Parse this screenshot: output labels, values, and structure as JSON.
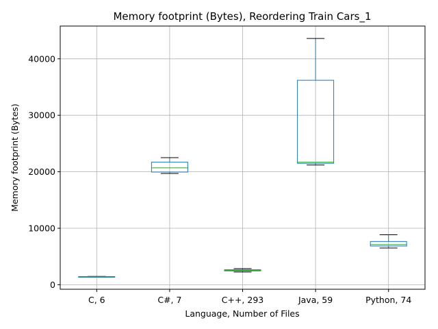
{
  "chart_data": {
    "type": "box",
    "title": "Memory footprint (Bytes), Reordering Train Cars_1",
    "xlabel": "Language, Number of Files",
    "ylabel": "Memory footprint (Bytes)",
    "ylim": [
      -800,
      45800
    ],
    "yticks": [
      0,
      10000,
      20000,
      30000,
      40000
    ],
    "grid": true,
    "colors": {
      "box": "#1f77b4",
      "median": "#2ca02c",
      "whisker_cap": "#000000",
      "grid": "#b0b0b0"
    },
    "categories": [
      "C, 6",
      "C#, 7",
      "C++, 293",
      "Java, 59",
      "Python, 74"
    ],
    "boxes": [
      {
        "category": "C, 6",
        "whisker_low": 1350,
        "q1": 1380,
        "median": 1420,
        "q3": 1450,
        "whisker_high": 1480
      },
      {
        "category": "C#, 7",
        "whisker_low": 19700,
        "q1": 19950,
        "median": 20700,
        "q3": 21700,
        "whisker_high": 22500
      },
      {
        "category": "C++, 293",
        "whisker_low": 2250,
        "q1": 2450,
        "median": 2550,
        "q3": 2650,
        "whisker_high": 2850
      },
      {
        "category": "Java, 59",
        "whisker_low": 21200,
        "q1": 21500,
        "median": 21700,
        "q3": 36200,
        "whisker_high": 43600
      },
      {
        "category": "Python, 74",
        "whisker_low": 6500,
        "q1": 6850,
        "median": 7100,
        "q3": 7650,
        "whisker_high": 8850
      }
    ]
  }
}
